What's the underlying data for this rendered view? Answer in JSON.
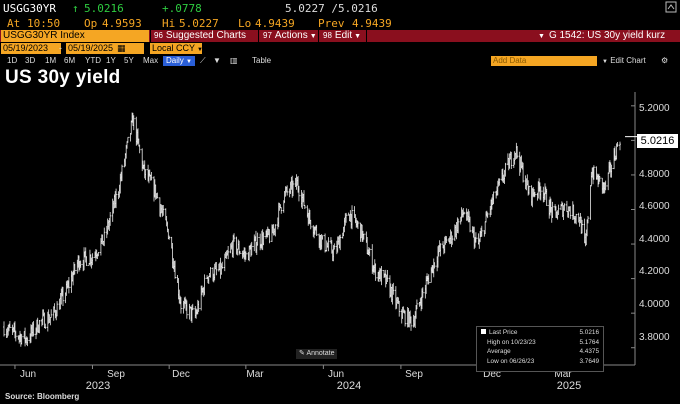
{
  "ticker": {
    "symbol": "USGG30YR",
    "arrow": "↑",
    "last": "5.0216",
    "change": "+.0778",
    "bid_ask": "5.0227 /5.0216",
    "at_label": "At",
    "at_time": "10:50",
    "open_label": "Op",
    "open": "4.9593",
    "high_label": "Hi",
    "high": "5.0227",
    "low_label": "Lo",
    "low": "4.9439",
    "prev_label": "Prev",
    "prev": "4.9439"
  },
  "toolbar": {
    "index_label": "USGG30YR Index",
    "suggested_charts": "Suggested Charts",
    "actions": "Actions",
    "edit": "Edit",
    "chart_name": "G 1542: US 30y yield kurz"
  },
  "date_range": {
    "start": "05/19/2023",
    "end": "05/19/2025",
    "currency": "Local CCY"
  },
  "range_buttons": [
    "1D",
    "3D",
    "1M",
    "6M",
    "YTD",
    "1Y",
    "5Y",
    "Max"
  ],
  "frequency": "Daily",
  "table_label": "Table",
  "add_data_placeholder": "Add Data",
  "edit_chart": "Edit Chart",
  "chart_title": "US 30y yield",
  "chart_data": {
    "type": "bar",
    "title": "US 30y yield",
    "y_ticks": [
      "5.2000",
      "5.0000",
      "4.8000",
      "4.6000",
      "4.4000",
      "4.2000",
      "4.0000",
      "3.8000"
    ],
    "ylim": [
      3.7,
      5.28
    ],
    "x_ticks": [
      "Jun",
      "Sep",
      "Dec",
      "Mar",
      "Jun",
      "Sep",
      "Dec",
      "Mar"
    ],
    "years": [
      "2023",
      "2024",
      "2025"
    ],
    "last_value": "5.0216",
    "series": [
      {
        "x": [
          "2023-05-19",
          "2023-06-01",
          "2023-06-15",
          "2023-07-01",
          "2023-07-15",
          "2023-08-01",
          "2023-08-15",
          "2023-09-01",
          "2023-09-15",
          "2023-10-01",
          "2023-10-19",
          "2023-11-01",
          "2023-11-15",
          "2023-12-01",
          "2023-12-15",
          "2024-01-01",
          "2024-01-15",
          "2024-02-01",
          "2024-02-15",
          "2024-03-01",
          "2024-03-15",
          "2024-04-01",
          "2024-04-15",
          "2024-05-01",
          "2024-05-15",
          "2024-06-01",
          "2024-06-15",
          "2024-07-01",
          "2024-07-15",
          "2024-08-01",
          "2024-08-15",
          "2024-09-01",
          "2024-09-15",
          "2024-10-01",
          "2024-10-15",
          "2024-11-01",
          "2024-11-15",
          "2024-12-01",
          "2024-12-15",
          "2025-01-01",
          "2025-01-15",
          "2025-02-01",
          "2025-02-15",
          "2025-03-01",
          "2025-03-15",
          "2025-04-01",
          "2025-04-08",
          "2025-04-15",
          "2025-05-01",
          "2025-05-19"
        ],
        "values": [
          3.92,
          3.88,
          3.85,
          3.95,
          3.98,
          4.13,
          4.3,
          4.33,
          4.43,
          4.7,
          5.12,
          4.82,
          4.7,
          4.45,
          4.05,
          3.98,
          4.22,
          4.25,
          4.4,
          4.33,
          4.42,
          4.45,
          4.68,
          4.75,
          4.55,
          4.4,
          4.35,
          4.58,
          4.48,
          4.25,
          4.18,
          4.0,
          3.95,
          4.17,
          4.35,
          4.45,
          4.59,
          4.38,
          4.6,
          4.8,
          4.95,
          4.68,
          4.73,
          4.56,
          4.62,
          4.55,
          4.38,
          4.82,
          4.72,
          5.02
        ]
      }
    ]
  },
  "legend": {
    "last_price_label": "Last Price",
    "last_price": "5.0216",
    "high_label": "High on 10/23/23",
    "high": "5.1764",
    "average_label": "Average",
    "average": "4.4375",
    "low_label": "Low on 06/26/23",
    "low": "3.7649"
  },
  "annotate_label": "Annotate",
  "source": "Source: Bloomberg",
  "colors": {
    "orange": "#f5a623",
    "toolbar_red": "#8a0f1e",
    "up_green": "#2ecc40",
    "daily_blue": "#2a5fd8"
  }
}
